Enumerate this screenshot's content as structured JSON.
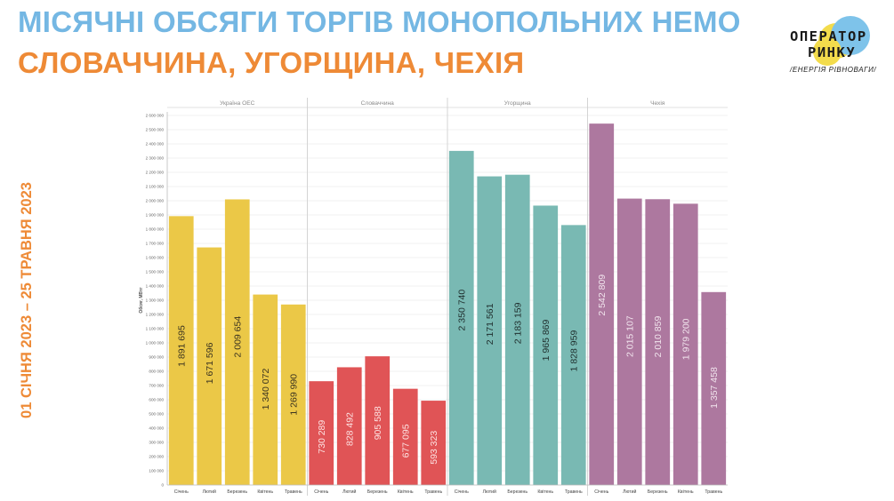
{
  "header": {
    "title_line1": "МІСЯЧНІ ОБСЯГИ ТОРГІВ МОНОПОЛЬНИХ НЕМО",
    "title_line2": "СЛОВАЧЧИНА, УГОРЩИНА, ЧЕХІЯ",
    "side_label": "01 СІЧНЯ 2023 – 25 ТРАВНЯ 2023"
  },
  "logo": {
    "line1": "ОПЕРАТОР",
    "line2": "РИНКУ",
    "tagline": "/ЕНЕРГІЯ РІВНОВАГИ/"
  },
  "colors": {
    "title_blue": "#74b7e3",
    "title_orange": "#ee8a36"
  },
  "chart_data": {
    "type": "bar",
    "ylabel": "Обсяг, МВтг",
    "ylim": [
      0,
      2600000
    ],
    "ytick_step": 100000,
    "grid": true,
    "categories": [
      "Січень",
      "Лютий",
      "Березень",
      "Квітень",
      "Травень"
    ],
    "panels": [
      {
        "name": "Україна ОЕС",
        "color": "#ebc847",
        "label_color": "#3a3320",
        "values": [
          1891695,
          1671596,
          2009654,
          1340072,
          1269990
        ],
        "labels": [
          "1 891 695",
          "1 671 596",
          "2 009 654",
          "1 340 072",
          "1 269 990"
        ]
      },
      {
        "name": "Словаччина",
        "color": "#e05456",
        "label_color": "#fde3e3",
        "values": [
          730289,
          828492,
          905588,
          677095,
          593323
        ],
        "labels": [
          "730 289",
          "828 492",
          "905 588",
          "677 095",
          "593 323"
        ]
      },
      {
        "name": "Угорщина",
        "color": "#79b9b3",
        "label_color": "#1f2e2d",
        "values": [
          2350740,
          2171561,
          2183159,
          1965869,
          1828959
        ],
        "labels": [
          "2 350 740",
          "2 171 561",
          "2 183 159",
          "1 965 869",
          "1 828 959"
        ]
      },
      {
        "name": "Чехія",
        "color": "#ad789f",
        "label_color": "#f1e4ed",
        "values": [
          2542809,
          2015107,
          2010859,
          1979200,
          1357458
        ],
        "labels": [
          "2 542 809",
          "2 015 107",
          "2 010 859",
          "1 979 200",
          "1 357 458"
        ]
      }
    ]
  }
}
